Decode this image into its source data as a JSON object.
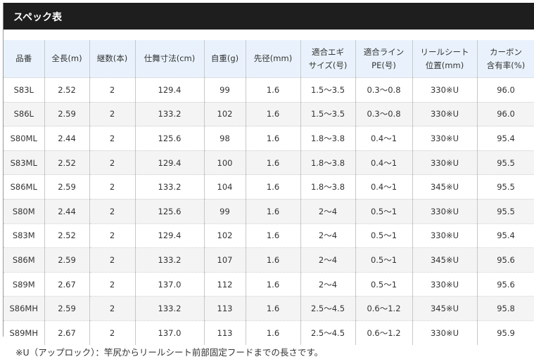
{
  "title": "スペック表",
  "headers": [
    "品番",
    "全長(m)",
    "継数(本)",
    "仕舞寸法(cm)",
    "自重(g)",
    "先径(mm)",
    "適合エギ\nサイズ(号)",
    "適合ライン\nPE(号)",
    "リールシート\n位置(mm)",
    "カーボン\n含有率(%)"
  ],
  "rows": [
    [
      "S83L",
      "2.52",
      "2",
      "129.4",
      "99",
      "1.6",
      "1.5〜3.5",
      "0.3〜0.8",
      "330※U",
      "96.0"
    ],
    [
      "S86L",
      "2.59",
      "2",
      "133.2",
      "102",
      "1.6",
      "1.5〜3.5",
      "0.3〜0.8",
      "330※U",
      "96.0"
    ],
    [
      "S80ML",
      "2.44",
      "2",
      "125.6",
      "98",
      "1.6",
      "1.8〜3.8",
      "0.4〜1",
      "330※U",
      "95.4"
    ],
    [
      "S83ML",
      "2.52",
      "2",
      "129.4",
      "100",
      "1.6",
      "1.8〜3.8",
      "0.4〜1",
      "330※U",
      "95.5"
    ],
    [
      "S86ML",
      "2.59",
      "2",
      "133.2",
      "104",
      "1.6",
      "1.8〜3.8",
      "0.4〜1",
      "345※U",
      "95.5"
    ],
    [
      "S80M",
      "2.44",
      "2",
      "125.6",
      "99",
      "1.6",
      "2〜4",
      "0.5〜1",
      "330※U",
      "95.5"
    ],
    [
      "S83M",
      "2.52",
      "2",
      "129.4",
      "102",
      "1.6",
      "2〜4",
      "0.5〜1",
      "330※U",
      "95.4"
    ],
    [
      "S86M",
      "2.59",
      "2",
      "133.2",
      "107",
      "1.6",
      "2〜4",
      "0.5〜1",
      "345※U",
      "95.6"
    ],
    [
      "S89M",
      "2.67",
      "2",
      "137.0",
      "112",
      "1.6",
      "2〜4",
      "0.5〜1",
      "330※U",
      "95.6"
    ],
    [
      "S86MH",
      "2.59",
      "2",
      "133.2",
      "113",
      "1.6",
      "2.5〜4.5",
      "0.6〜1.2",
      "345※U",
      "95.8"
    ],
    [
      "S89MH",
      "2.67",
      "2",
      "137.0",
      "113",
      "1.6",
      "2.5〜4.5",
      "0.6〜1.2",
      "330※U",
      "95.9"
    ]
  ],
  "footnote": "※U（アップロック）：竿尻からリールシート前部固定フードまでの長さです。"
}
